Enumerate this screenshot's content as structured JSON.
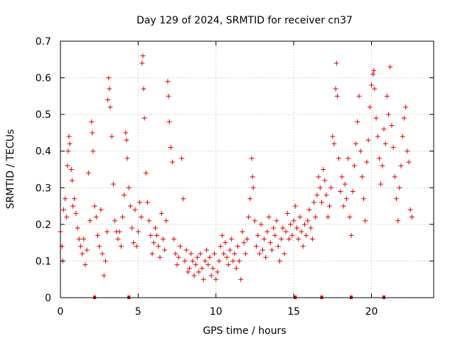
{
  "chart_data": {
    "type": "scatter",
    "title": "Day 129 of 2024, SRMTID for receiver cn37",
    "xlabel": "GPS time / hours",
    "ylabel": "SRMTID / TECUs",
    "xlim": [
      0,
      24
    ],
    "ylim": [
      0,
      0.7
    ],
    "x_ticks": [
      0,
      5,
      10,
      15,
      20
    ],
    "x_tick_labels": [
      "0",
      "5",
      "10",
      "15",
      "20"
    ],
    "y_ticks": [
      0,
      0.1,
      0.2,
      0.3,
      0.4,
      0.5,
      0.6,
      0.7
    ],
    "y_tick_labels": [
      "0",
      "0.1",
      "0.2",
      "0.3",
      "0.4",
      "0.5",
      "0.6",
      "0.7"
    ],
    "grid": true,
    "marker": "plus",
    "color": "#e00000",
    "series": [
      {
        "name": "SRMTID",
        "points": [
          [
            0.0,
            0.18
          ],
          [
            0.1,
            0.14
          ],
          [
            0.15,
            0.1
          ],
          [
            0.2,
            0.24
          ],
          [
            0.3,
            0.27
          ],
          [
            0.4,
            0.22
          ],
          [
            0.45,
            0.36
          ],
          [
            0.5,
            0.4
          ],
          [
            0.55,
            0.44
          ],
          [
            0.6,
            0.42
          ],
          [
            0.7,
            0.35
          ],
          [
            0.75,
            0.32
          ],
          [
            0.8,
            0.25
          ],
          [
            0.9,
            0.27
          ],
          [
            1.0,
            0.23
          ],
          [
            1.1,
            0.19
          ],
          [
            1.2,
            0.16
          ],
          [
            1.3,
            0.14
          ],
          [
            1.4,
            0.12
          ],
          [
            1.5,
            0.16
          ],
          [
            1.6,
            0.09
          ],
          [
            1.7,
            0.13
          ],
          [
            1.8,
            0.34
          ],
          [
            1.9,
            0.21
          ],
          [
            2.0,
            0.48
          ],
          [
            2.05,
            0.45
          ],
          [
            2.1,
            0.4
          ],
          [
            2.2,
            0.25
          ],
          [
            2.3,
            0.22
          ],
          [
            2.4,
            0.17
          ],
          [
            2.5,
            0.14
          ],
          [
            2.6,
            0.24
          ],
          [
            2.7,
            0.12
          ],
          [
            2.8,
            0.06
          ],
          [
            2.9,
            0.1
          ],
          [
            3.0,
            0.18
          ],
          [
            3.05,
            0.54
          ],
          [
            3.1,
            0.6
          ],
          [
            3.15,
            0.57
          ],
          [
            3.2,
            0.52
          ],
          [
            3.3,
            0.44
          ],
          [
            3.4,
            0.31
          ],
          [
            3.5,
            0.21
          ],
          [
            3.6,
            0.18
          ],
          [
            3.7,
            0.16
          ],
          [
            3.8,
            0.18
          ],
          [
            3.9,
            0.14
          ],
          [
            4.0,
            0.22
          ],
          [
            4.1,
            0.28
          ],
          [
            4.2,
            0.45
          ],
          [
            4.25,
            0.43
          ],
          [
            4.3,
            0.38
          ],
          [
            4.4,
            0.3
          ],
          [
            4.5,
            0.25
          ],
          [
            4.6,
            0.19
          ],
          [
            4.7,
            0.15
          ],
          [
            4.8,
            0.24
          ],
          [
            4.9,
            0.14
          ],
          [
            5.0,
            0.18
          ],
          [
            5.1,
            0.26
          ],
          [
            5.2,
            0.22
          ],
          [
            5.25,
            0.64
          ],
          [
            5.3,
            0.66
          ],
          [
            5.35,
            0.57
          ],
          [
            5.4,
            0.49
          ],
          [
            5.5,
            0.34
          ],
          [
            5.6,
            0.26
          ],
          [
            5.7,
            0.21
          ],
          [
            5.8,
            0.17
          ],
          [
            5.9,
            0.12
          ],
          [
            6.0,
            0.15
          ],
          [
            6.1,
            0.19
          ],
          [
            6.2,
            0.17
          ],
          [
            6.3,
            0.14
          ],
          [
            6.4,
            0.11
          ],
          [
            6.5,
            0.23
          ],
          [
            6.6,
            0.16
          ],
          [
            6.7,
            0.13
          ],
          [
            6.8,
            0.21
          ],
          [
            6.9,
            0.59
          ],
          [
            6.95,
            0.55
          ],
          [
            7.0,
            0.48
          ],
          [
            7.1,
            0.41
          ],
          [
            7.2,
            0.37
          ],
          [
            7.3,
            0.16
          ],
          [
            7.4,
            0.12
          ],
          [
            7.5,
            0.09
          ],
          [
            7.6,
            0.11
          ],
          [
            7.7,
            0.14
          ],
          [
            7.8,
            0.38
          ],
          [
            7.9,
            0.27
          ],
          [
            8.0,
            0.1
          ],
          [
            8.1,
            0.13
          ],
          [
            8.2,
            0.07
          ],
          [
            8.3,
            0.08
          ],
          [
            8.4,
            0.12
          ],
          [
            8.5,
            0.1
          ],
          [
            8.6,
            0.06
          ],
          [
            8.7,
            0.09
          ],
          [
            8.8,
            0.11
          ],
          [
            8.9,
            0.07
          ],
          [
            9.0,
            0.12
          ],
          [
            9.1,
            0.08
          ],
          [
            9.2,
            0.05
          ],
          [
            9.3,
            0.1
          ],
          [
            9.4,
            0.13
          ],
          [
            9.5,
            0.09
          ],
          [
            9.6,
            0.11
          ],
          [
            9.7,
            0.06
          ],
          [
            9.8,
            0.08
          ],
          [
            9.9,
            0.12
          ],
          [
            10.0,
            0.05
          ],
          [
            10.1,
            0.07
          ],
          [
            10.2,
            0.1
          ],
          [
            10.3,
            0.14
          ],
          [
            10.4,
            0.17
          ],
          [
            10.5,
            0.12
          ],
          [
            10.6,
            0.15
          ],
          [
            10.7,
            0.11
          ],
          [
            10.8,
            0.09
          ],
          [
            10.9,
            0.13
          ],
          [
            11.0,
            0.16
          ],
          [
            11.1,
            0.1
          ],
          [
            11.2,
            0.12
          ],
          [
            11.3,
            0.08
          ],
          [
            11.4,
            0.14
          ],
          [
            11.5,
            0.1
          ],
          [
            11.6,
            0.05
          ],
          [
            11.7,
            0.18
          ],
          [
            11.8,
            0.15
          ],
          [
            11.9,
            0.12
          ],
          [
            12.0,
            0.16
          ],
          [
            12.1,
            0.22
          ],
          [
            12.2,
            0.27
          ],
          [
            12.3,
            0.38
          ],
          [
            12.35,
            0.33
          ],
          [
            12.4,
            0.3
          ],
          [
            12.5,
            0.21
          ],
          [
            12.6,
            0.14
          ],
          [
            12.7,
            0.17
          ],
          [
            12.8,
            0.12
          ],
          [
            12.9,
            0.2
          ],
          [
            13.0,
            0.13
          ],
          [
            13.1,
            0.16
          ],
          [
            13.2,
            0.11
          ],
          [
            13.3,
            0.18
          ],
          [
            13.4,
            0.22
          ],
          [
            13.5,
            0.15
          ],
          [
            13.6,
            0.13
          ],
          [
            13.7,
            0.19
          ],
          [
            13.8,
            0.17
          ],
          [
            13.9,
            0.21
          ],
          [
            14.0,
            0.14
          ],
          [
            14.1,
            0.1
          ],
          [
            14.2,
            0.16
          ],
          [
            14.3,
            0.19
          ],
          [
            14.4,
            0.12
          ],
          [
            14.5,
            0.18
          ],
          [
            14.6,
            0.23
          ],
          [
            14.7,
            0.16
          ],
          [
            14.8,
            0.2
          ],
          [
            14.9,
            0.17
          ],
          [
            15.0,
            0.21
          ],
          [
            15.1,
            0.25
          ],
          [
            15.2,
            0.19
          ],
          [
            15.3,
            0.16
          ],
          [
            15.4,
            0.22
          ],
          [
            15.5,
            0.18
          ],
          [
            15.6,
            0.14
          ],
          [
            15.7,
            0.2
          ],
          [
            15.8,
            0.17
          ],
          [
            15.9,
            0.21
          ],
          [
            16.0,
            0.24
          ],
          [
            16.1,
            0.19
          ],
          [
            16.2,
            0.16
          ],
          [
            16.3,
            0.26
          ],
          [
            16.4,
            0.22
          ],
          [
            16.5,
            0.28
          ],
          [
            16.6,
            0.33
          ],
          [
            16.7,
            0.3
          ],
          [
            16.8,
            0.26
          ],
          [
            16.9,
            0.35
          ],
          [
            17.0,
            0.32
          ],
          [
            17.1,
            0.28
          ],
          [
            17.2,
            0.22
          ],
          [
            17.3,
            0.25
          ],
          [
            17.4,
            0.3
          ],
          [
            17.5,
            0.44
          ],
          [
            17.6,
            0.42
          ],
          [
            17.7,
            0.57
          ],
          [
            17.75,
            0.64
          ],
          [
            17.8,
            0.55
          ],
          [
            17.9,
            0.38
          ],
          [
            18.0,
            0.29
          ],
          [
            18.1,
            0.33
          ],
          [
            18.2,
            0.25
          ],
          [
            18.3,
            0.31
          ],
          [
            18.4,
            0.27
          ],
          [
            18.5,
            0.38
          ],
          [
            18.6,
            0.22
          ],
          [
            18.7,
            0.17
          ],
          [
            18.8,
            0.29
          ],
          [
            18.9,
            0.36
          ],
          [
            19.0,
            0.42
          ],
          [
            19.1,
            0.48
          ],
          [
            19.2,
            0.55
          ],
          [
            19.3,
            0.4
          ],
          [
            19.4,
            0.33
          ],
          [
            19.5,
            0.27
          ],
          [
            19.6,
            0.21
          ],
          [
            19.7,
            0.37
          ],
          [
            19.8,
            0.43
          ],
          [
            19.9,
            0.52
          ],
          [
            20.0,
            0.58
          ],
          [
            20.1,
            0.61
          ],
          [
            20.15,
            0.62
          ],
          [
            20.2,
            0.57
          ],
          [
            20.3,
            0.49
          ],
          [
            20.4,
            0.44
          ],
          [
            20.5,
            0.38
          ],
          [
            20.6,
            0.31
          ],
          [
            20.7,
            0.36
          ],
          [
            20.8,
            0.46
          ],
          [
            20.9,
            0.42
          ],
          [
            21.0,
            0.55
          ],
          [
            21.1,
            0.5
          ],
          [
            21.2,
            0.63
          ],
          [
            21.3,
            0.47
          ],
          [
            21.4,
            0.41
          ],
          [
            21.5,
            0.33
          ],
          [
            21.6,
            0.27
          ],
          [
            21.7,
            0.21
          ],
          [
            21.8,
            0.3
          ],
          [
            21.9,
            0.36
          ],
          [
            22.0,
            0.44
          ],
          [
            22.1,
            0.49
          ],
          [
            22.2,
            0.52
          ],
          [
            22.3,
            0.4
          ],
          [
            22.4,
            0.37
          ],
          [
            22.5,
            0.24
          ],
          [
            22.6,
            0.22
          ]
        ]
      }
    ],
    "zero_markers_x": [
      2.2,
      4.4,
      15.1,
      16.8,
      18.7,
      20.8
    ]
  }
}
